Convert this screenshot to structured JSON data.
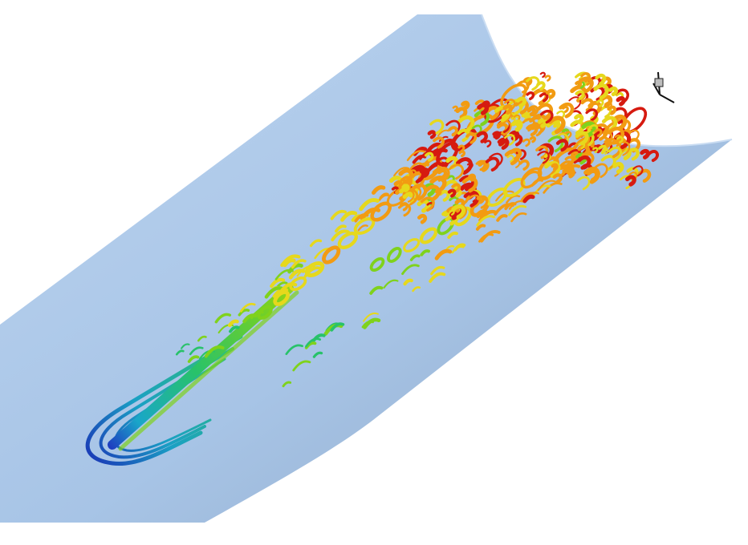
{
  "figure": {
    "type": "cfd-vortex-isosurface",
    "axis_triad_icon": "xyz-axes-icon",
    "colors": {
      "background": "#ffffff",
      "wall_light": "#b7d0ee",
      "wall_mid": "#a7c4e6",
      "wall_dark": "#8ea9c9",
      "core": [
        "#1f2fbf",
        "#19a6c9",
        "#28c26a",
        "#7fd21c",
        "#e6d81c",
        "#f29b12",
        "#d61a10"
      ]
    }
  }
}
